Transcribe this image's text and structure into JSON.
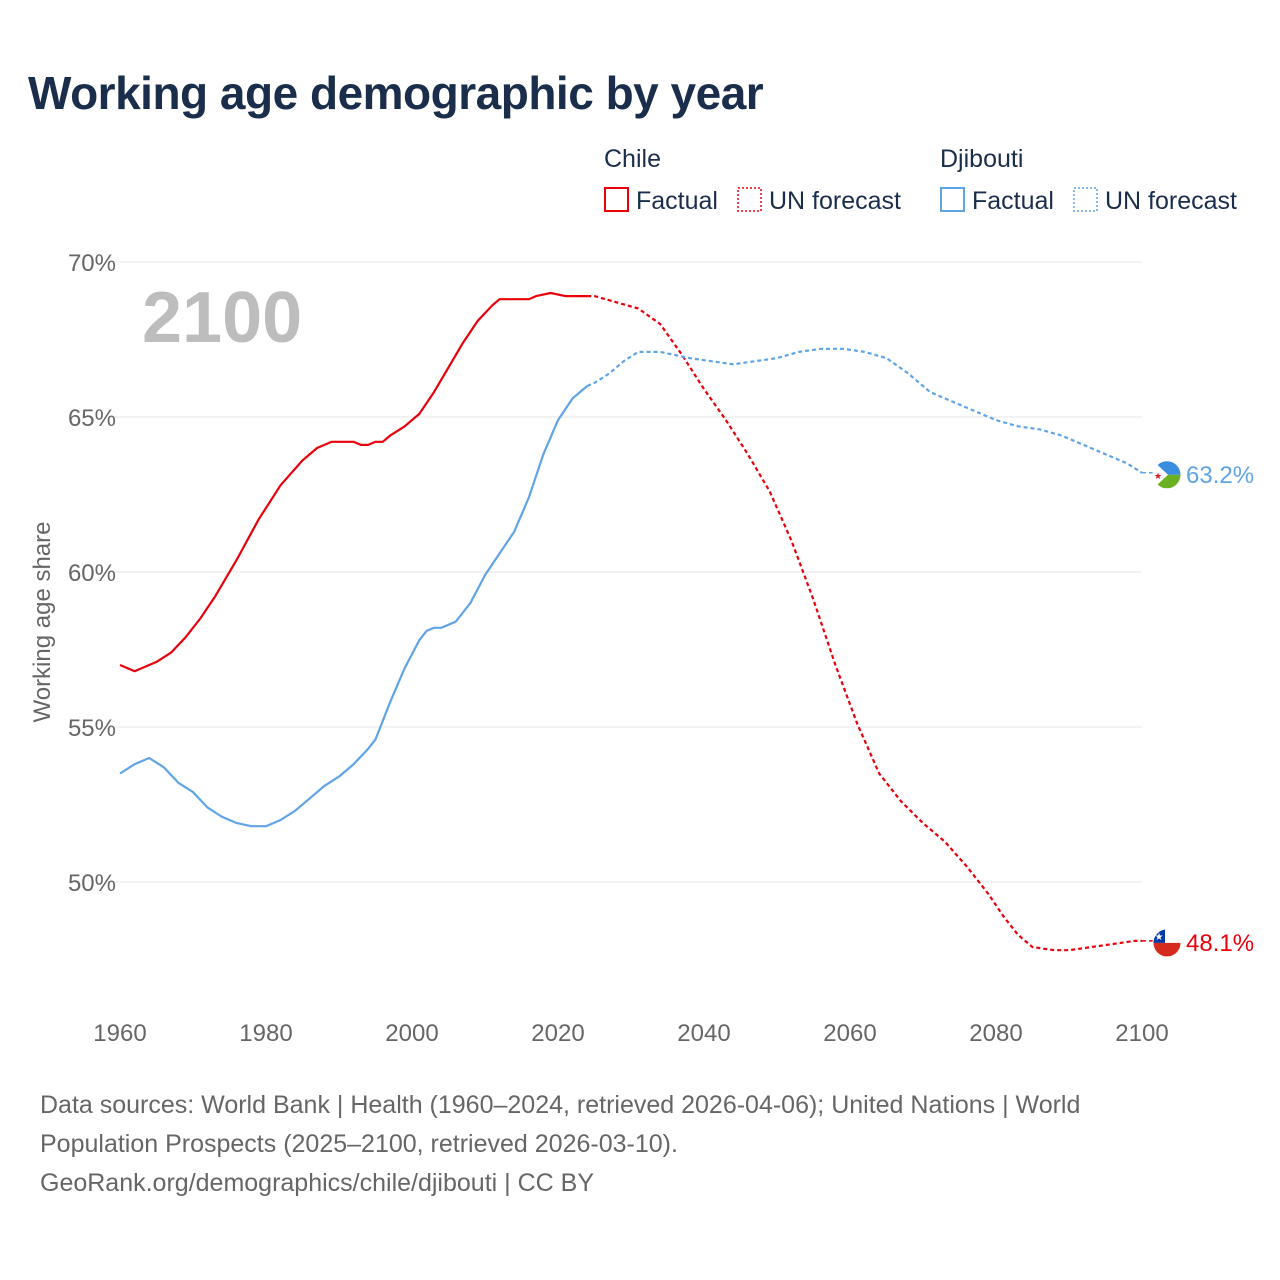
{
  "title": "Working age demographic by year",
  "chart_data": {
    "type": "line",
    "year_label": "2100",
    "ylabel": "Working age share",
    "xlim": [
      1960,
      2100
    ],
    "ylim": [
      45,
      70
    ],
    "x_ticks": [
      1960,
      1980,
      2000,
      2020,
      2040,
      2060,
      2080,
      2100
    ],
    "x_tick_labels": [
      "1960",
      "1980",
      "2000",
      "2020",
      "2040",
      "2060",
      "2080",
      "2100"
    ],
    "y_ticks": [
      50,
      55,
      60,
      65,
      70
    ],
    "y_tick_labels": [
      "50%",
      "55%",
      "60%",
      "65%",
      "70%"
    ],
    "legend": {
      "position": "top-right",
      "factual_label": "Factual",
      "forecast_label": "UN forecast"
    },
    "series": [
      {
        "name": "Chile",
        "color": "#e8000b",
        "end_label": "48.1%",
        "flag": "chile-flag",
        "factual": [
          [
            1960,
            57.0
          ],
          [
            1962,
            56.8
          ],
          [
            1965,
            57.1
          ],
          [
            1967,
            57.4
          ],
          [
            1969,
            57.9
          ],
          [
            1971,
            58.5
          ],
          [
            1973,
            59.2
          ],
          [
            1976,
            60.4
          ],
          [
            1979,
            61.7
          ],
          [
            1982,
            62.8
          ],
          [
            1985,
            63.6
          ],
          [
            1987,
            64.0
          ],
          [
            1989,
            64.2
          ],
          [
            1992,
            64.2
          ],
          [
            1993,
            64.1
          ],
          [
            1994,
            64.1
          ],
          [
            1995,
            64.2
          ],
          [
            1996,
            64.2
          ],
          [
            1997,
            64.4
          ],
          [
            1999,
            64.7
          ],
          [
            2001,
            65.1
          ],
          [
            2003,
            65.8
          ],
          [
            2005,
            66.6
          ],
          [
            2007,
            67.4
          ],
          [
            2009,
            68.1
          ],
          [
            2011,
            68.6
          ],
          [
            2012,
            68.8
          ],
          [
            2014,
            68.8
          ],
          [
            2016,
            68.8
          ],
          [
            2017,
            68.9
          ],
          [
            2019,
            69.0
          ],
          [
            2021,
            68.9
          ],
          [
            2024,
            68.9
          ]
        ],
        "forecast": [
          [
            2025,
            68.9
          ],
          [
            2028,
            68.7
          ],
          [
            2031,
            68.5
          ],
          [
            2034,
            68.0
          ],
          [
            2037,
            67.0
          ],
          [
            2040,
            65.9
          ],
          [
            2043,
            64.9
          ],
          [
            2046,
            63.8
          ],
          [
            2049,
            62.6
          ],
          [
            2052,
            61.0
          ],
          [
            2055,
            59.1
          ],
          [
            2058,
            57.0
          ],
          [
            2061,
            55.1
          ],
          [
            2064,
            53.5
          ],
          [
            2067,
            52.6
          ],
          [
            2070,
            51.9
          ],
          [
            2073,
            51.3
          ],
          [
            2076,
            50.5
          ],
          [
            2079,
            49.6
          ],
          [
            2081,
            48.9
          ],
          [
            2083,
            48.3
          ],
          [
            2085,
            47.9
          ],
          [
            2088,
            47.8
          ],
          [
            2090,
            47.8
          ],
          [
            2093,
            47.9
          ],
          [
            2096,
            48.0
          ],
          [
            2099,
            48.1
          ],
          [
            2100,
            48.1
          ]
        ]
      },
      {
        "name": "Djibouti",
        "color": "#5ea4e6",
        "end_label": "63.2%",
        "flag": "djibouti-flag",
        "factual": [
          [
            1960,
            53.5
          ],
          [
            1962,
            53.8
          ],
          [
            1964,
            54.0
          ],
          [
            1966,
            53.7
          ],
          [
            1968,
            53.2
          ],
          [
            1970,
            52.9
          ],
          [
            1972,
            52.4
          ],
          [
            1974,
            52.1
          ],
          [
            1976,
            51.9
          ],
          [
            1978,
            51.8
          ],
          [
            1980,
            51.8
          ],
          [
            1982,
            52.0
          ],
          [
            1984,
            52.3
          ],
          [
            1986,
            52.7
          ],
          [
            1988,
            53.1
          ],
          [
            1990,
            53.4
          ],
          [
            1992,
            53.8
          ],
          [
            1994,
            54.3
          ],
          [
            1995,
            54.6
          ],
          [
            1997,
            55.8
          ],
          [
            1999,
            56.9
          ],
          [
            2001,
            57.8
          ],
          [
            2002,
            58.1
          ],
          [
            2003,
            58.2
          ],
          [
            2004,
            58.2
          ],
          [
            2006,
            58.4
          ],
          [
            2008,
            59.0
          ],
          [
            2010,
            59.9
          ],
          [
            2012,
            60.6
          ],
          [
            2014,
            61.3
          ],
          [
            2016,
            62.4
          ],
          [
            2018,
            63.8
          ],
          [
            2020,
            64.9
          ],
          [
            2022,
            65.6
          ],
          [
            2024,
            66.0
          ]
        ],
        "forecast": [
          [
            2025,
            66.1
          ],
          [
            2027,
            66.4
          ],
          [
            2029,
            66.8
          ],
          [
            2031,
            67.1
          ],
          [
            2034,
            67.1
          ],
          [
            2036,
            67.0
          ],
          [
            2038,
            66.9
          ],
          [
            2041,
            66.8
          ],
          [
            2044,
            66.7
          ],
          [
            2047,
            66.8
          ],
          [
            2050,
            66.9
          ],
          [
            2053,
            67.1
          ],
          [
            2056,
            67.2
          ],
          [
            2059,
            67.2
          ],
          [
            2062,
            67.1
          ],
          [
            2065,
            66.9
          ],
          [
            2068,
            66.4
          ],
          [
            2071,
            65.8
          ],
          [
            2074,
            65.5
          ],
          [
            2077,
            65.2
          ],
          [
            2080,
            64.9
          ],
          [
            2083,
            64.7
          ],
          [
            2086,
            64.6
          ],
          [
            2089,
            64.4
          ],
          [
            2092,
            64.1
          ],
          [
            2095,
            63.8
          ],
          [
            2098,
            63.5
          ],
          [
            2100,
            63.2
          ]
        ]
      }
    ]
  },
  "source": {
    "line1": "Data sources: World Bank | Health (1960–2024, retrieved 2026-04-06); United Nations | World",
    "line2": "Population Prospects (2025–2100, retrieved 2026-03-10).",
    "line3": "GeoRank.org/demographics/chile/djibouti | CC BY"
  }
}
